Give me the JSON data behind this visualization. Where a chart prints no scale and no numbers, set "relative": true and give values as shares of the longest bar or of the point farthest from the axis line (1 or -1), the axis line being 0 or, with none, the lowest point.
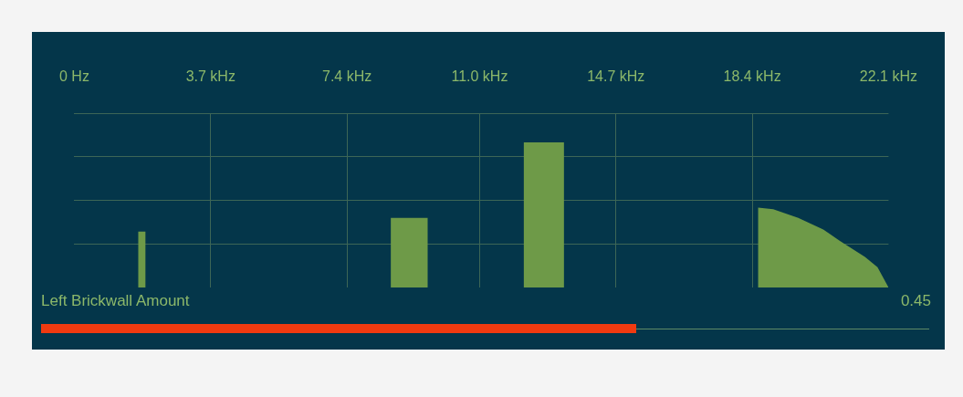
{
  "chart_data": {
    "type": "area",
    "relative": true,
    "grid": true,
    "x": [
      1.73,
      1.73,
      1.93,
      1.93,
      8.59,
      8.59,
      9.59,
      9.59,
      12.2,
      12.2,
      13.29,
      13.29,
      18.56,
      18.56,
      18.97,
      19.65,
      20.33,
      20.78,
      21.46,
      21.8,
      22.1
    ],
    "series": [
      {
        "color": "#6e9a48",
        "values": [
          0,
          0.385,
          0.385,
          0,
          0,
          0.48,
          0.48,
          0,
          0,
          1,
          1,
          0,
          0,
          0.55,
          0.54,
          0.48,
          0.4,
          0.32,
          0.21,
          0.14,
          0
        ]
      }
    ],
    "xlim": [
      0,
      22.1
    ],
    "xticks": [
      {
        "value": 0,
        "label": "0 Hz"
      },
      {
        "value": 3.7,
        "label": "3.7 kHz"
      },
      {
        "value": 7.4,
        "label": "7.4 kHz"
      },
      {
        "value": 11.0,
        "label": "11.0 kHz"
      },
      {
        "value": 14.7,
        "label": "14.7 kHz"
      },
      {
        "value": 18.4,
        "label": "18.4 kHz"
      },
      {
        "value": 22.1,
        "label": "22.1 kHz"
      }
    ],
    "annotations": [
      "Left Brickwall Amount",
      "0.45"
    ]
  }
}
